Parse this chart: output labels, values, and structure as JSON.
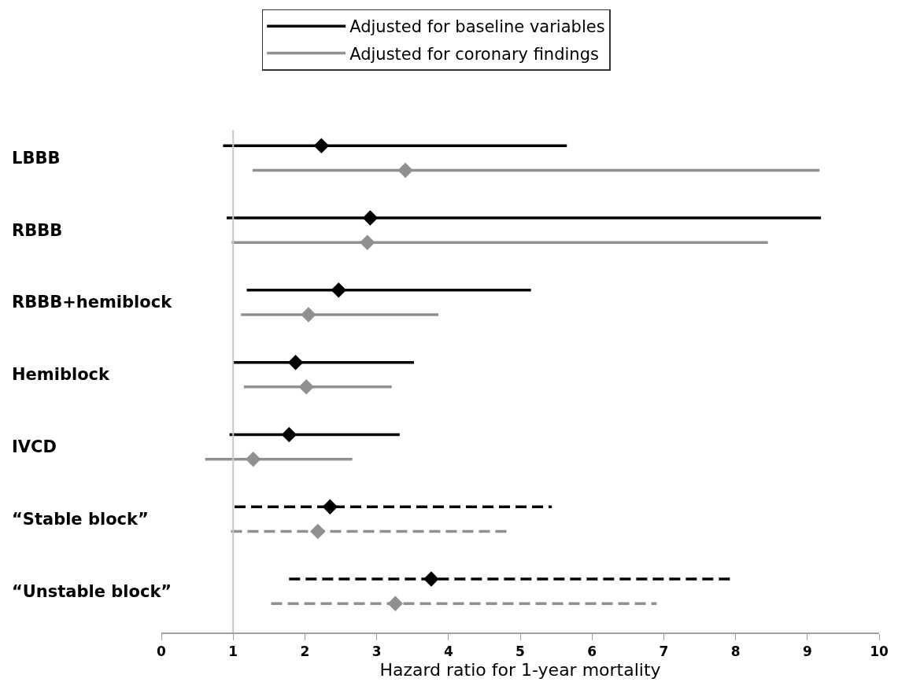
{
  "chart_data": {
    "type": "scatter",
    "orientation": "horizontal",
    "xlabel": "Hazard ratio for 1-year mortality",
    "categories": [
      "LBBB",
      "RBBB",
      "RBBB+hemiblock",
      "Hemiblock",
      "IVCD",
      "“Stable block”",
      "“Unstable block”"
    ],
    "xlim": [
      0,
      10
    ],
    "xticks": [
      0,
      1,
      2,
      3,
      4,
      5,
      6,
      7,
      8,
      9,
      10
    ],
    "marker": "diamond",
    "legend": "top",
    "ref_lines": [
      {
        "axis": "x",
        "value": 1,
        "color": "#c8c8c8"
      }
    ],
    "series": [
      {
        "name": "Adjusted for baseline variables",
        "color": "#000000",
        "line_style": "solid",
        "values": [
          2.23,
          2.91,
          2.47,
          1.87,
          1.78,
          null,
          null
        ],
        "errors": [
          [
            0.86,
            5.65
          ],
          [
            0.91,
            9.19
          ],
          [
            1.19,
            5.15
          ],
          [
            1.0,
            3.52
          ],
          [
            0.95,
            3.32
          ],
          null,
          null
        ]
      },
      {
        "name": "Adjusted for coronary findings",
        "color": "#909090",
        "line_style": "solid",
        "values": [
          3.4,
          2.87,
          2.05,
          2.02,
          1.28,
          null,
          null
        ],
        "errors": [
          [
            1.27,
            9.17
          ],
          [
            0.98,
            8.45
          ],
          [
            1.11,
            3.86
          ],
          [
            1.15,
            3.21
          ],
          [
            0.61,
            2.66
          ],
          null,
          null
        ]
      },
      {
        "color": "#000000",
        "line_style": "dashed",
        "values": [
          null,
          null,
          null,
          null,
          null,
          2.35,
          3.76
        ],
        "errors": [
          null,
          null,
          null,
          null,
          null,
          [
            1.02,
            5.44
          ],
          [
            1.78,
            7.94
          ]
        ]
      },
      {
        "color": "#909090",
        "line_style": "dashed",
        "values": [
          null,
          null,
          null,
          null,
          null,
          2.18,
          3.26
        ],
        "errors": [
          null,
          null,
          null,
          null,
          null,
          [
            0.97,
            4.83
          ],
          [
            1.53,
            6.9
          ]
        ]
      }
    ]
  }
}
